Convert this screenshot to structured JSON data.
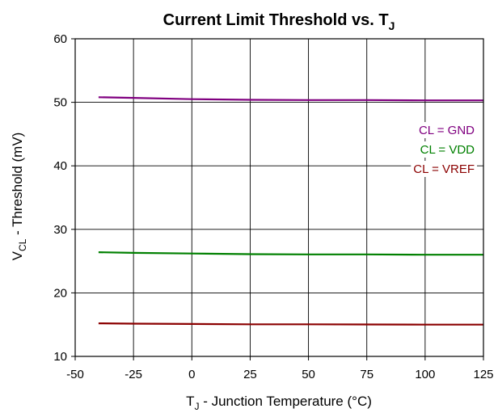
{
  "chart_data": {
    "type": "line",
    "title": {
      "main": "Current Limit Threshold vs. T",
      "sub": "J"
    },
    "xlabel": {
      "main": "T",
      "sub": "J",
      "rest": " - Junction Temperature (°C)"
    },
    "ylabel": {
      "main": "V",
      "sub": "CL",
      "rest": " - Threshold (mV)"
    },
    "xlim": [
      -50,
      125
    ],
    "ylim": [
      10,
      60
    ],
    "xticks": [
      "-50",
      "-25",
      "0",
      "25",
      "50",
      "75",
      "100",
      "125"
    ],
    "xtick_values": [
      -50,
      -25,
      0,
      25,
      50,
      75,
      100,
      125
    ],
    "yticks": [
      "10",
      "20",
      "30",
      "40",
      "50",
      "60"
    ],
    "ytick_values": [
      10,
      20,
      30,
      40,
      50,
      60
    ],
    "grid": true,
    "x": [
      -40,
      -25,
      0,
      25,
      50,
      75,
      100,
      125
    ],
    "series": [
      {
        "name": "CL = GND",
        "color": "#800080",
        "values": [
          50.8,
          50.7,
          50.5,
          50.4,
          50.35,
          50.35,
          50.3,
          50.3
        ]
      },
      {
        "name": "CL = VDD",
        "color": "#008000",
        "values": [
          26.4,
          26.3,
          26.2,
          26.1,
          26.05,
          26.05,
          26.0,
          26.0
        ]
      },
      {
        "name": "CL = VREF",
        "color": "#8B0000",
        "values": [
          15.2,
          15.15,
          15.1,
          15.05,
          15.05,
          15.02,
          15.0,
          15.0
        ]
      }
    ]
  }
}
